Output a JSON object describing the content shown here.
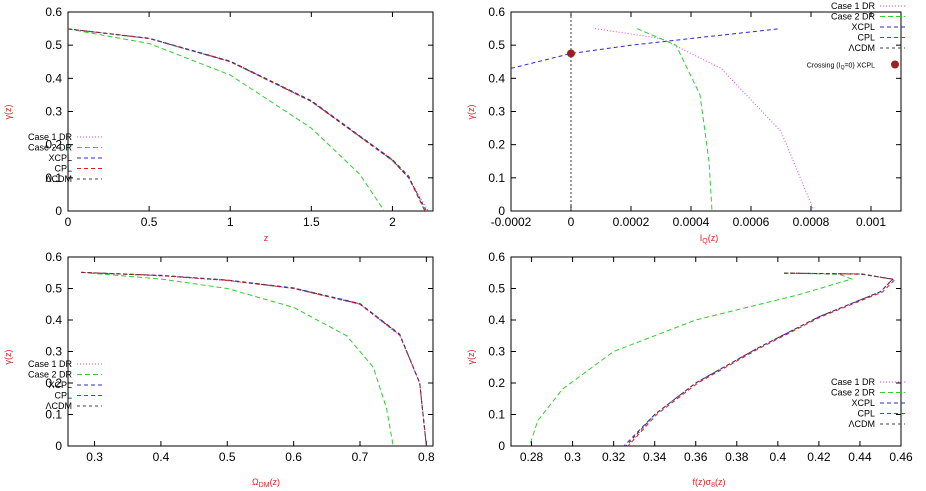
{
  "colors": {
    "case1_dr": "#e040e0",
    "case2_dr": "#33cc33",
    "xcpl": "#2a2ad0",
    "cpl": "#e02020",
    "lcdm": "#404040",
    "crossing_marker": "#9b2020",
    "axis_label": "#e02020"
  },
  "chart_data": [
    {
      "type": "line",
      "xlabel": "z",
      "ylabel": "γ(z)",
      "xlim": [
        0,
        2.25
      ],
      "ylim": [
        0,
        0.6
      ],
      "xticks": [
        "0",
        "0.5",
        "1",
        "1.5",
        "2"
      ],
      "yticks": [
        "0",
        "0.1",
        "0.2",
        "0.3",
        "0.4",
        "0.5",
        "0.6"
      ],
      "legend_position": "lower-left",
      "series": [
        {
          "name": "Case 1 DR",
          "key": "case1_dr",
          "dash": "1,2",
          "x": [
            0,
            0.5,
            1.0,
            1.5,
            2.0,
            2.1,
            2.22
          ],
          "y": [
            0.549,
            0.52,
            0.45,
            0.33,
            0.155,
            0.1,
            0.0
          ]
        },
        {
          "name": "Case 2 DR",
          "key": "case2_dr",
          "dash": "5,3",
          "x": [
            0,
            0.5,
            1.0,
            1.5,
            1.8,
            1.95
          ],
          "y": [
            0.549,
            0.505,
            0.41,
            0.25,
            0.11,
            0.0
          ]
        },
        {
          "name": "XCPL",
          "key": "xcpl",
          "dash": "4,3",
          "x": [
            0,
            0.5,
            1.0,
            1.5,
            2.0,
            2.1,
            2.2
          ],
          "y": [
            0.549,
            0.521,
            0.452,
            0.333,
            0.155,
            0.105,
            0.0
          ]
        },
        {
          "name": "CPL",
          "key": "cpl",
          "dash": "4,3",
          "x": [
            0,
            0.5,
            1.0,
            1.5,
            2.0,
            2.1,
            2.2
          ],
          "y": [
            0.549,
            0.52,
            0.45,
            0.33,
            0.152,
            0.1,
            0.0
          ]
        },
        {
          "name": "ΛCDM",
          "key": "lcdm",
          "dash": "3,3",
          "x": [
            0,
            0.5,
            1.0,
            1.5,
            2.0,
            2.1,
            2.21
          ],
          "y": [
            0.549,
            0.52,
            0.451,
            0.331,
            0.153,
            0.1,
            0.0
          ]
        }
      ]
    },
    {
      "type": "line",
      "xlabel": "I_Q(z)",
      "ylabel": "γ(z)",
      "xlim": [
        -0.0002,
        0.0011
      ],
      "ylim": [
        0,
        0.6
      ],
      "xticks": [
        "-0.0002",
        "0",
        "0.0002",
        "0.0004",
        "0.0006",
        "0.0008",
        "0.001"
      ],
      "yticks": [
        "0",
        "0.1",
        "0.2",
        "0.3",
        "0.4",
        "0.5",
        "0.6"
      ],
      "legend_position": "top-right",
      "crossing_label": "Crossing (I_Q=0) XCPL",
      "crossing_point": {
        "x": 0,
        "y": 0.475
      },
      "vertical_line_x": 0,
      "series": [
        {
          "name": "Case 1 DR",
          "key": "case1_dr",
          "dash": "1,2",
          "x": [
            8e-05,
            0.0003,
            0.0005,
            0.0007,
            0.00081
          ],
          "y": [
            0.55,
            0.52,
            0.43,
            0.24,
            0.0
          ]
        },
        {
          "name": "Case 2 DR",
          "key": "case2_dr",
          "dash": "5,3",
          "x": [
            0.00022,
            0.00035,
            0.00043,
            0.00046,
            0.00047
          ],
          "y": [
            0.55,
            0.5,
            0.35,
            0.15,
            0.0
          ]
        },
        {
          "name": "XCPL",
          "key": "xcpl",
          "dash": "4,3",
          "x": [
            -0.0002,
            0.0,
            0.0002,
            0.0004,
            0.0006,
            0.00069
          ],
          "y": [
            0.43,
            0.475,
            0.5,
            0.52,
            0.54,
            0.549
          ]
        },
        {
          "name": "CPL",
          "key": "cpl",
          "dash": "4,3",
          "x": [],
          "y": []
        },
        {
          "name": "ΛCDM",
          "key": "lcdm",
          "dash": "3,3",
          "x": [],
          "y": []
        }
      ]
    },
    {
      "type": "line",
      "xlabel": "Ω_DM(z)",
      "ylabel": "γ(z)",
      "xlim": [
        0.26,
        0.81
      ],
      "ylim": [
        0,
        0.6
      ],
      "xticks": [
        "0.3",
        "0.4",
        "0.5",
        "0.6",
        "0.7",
        "0.8"
      ],
      "yticks": [
        "0",
        "0.1",
        "0.2",
        "0.3",
        "0.4",
        "0.5",
        "0.6"
      ],
      "legend_position": "lower-left",
      "series": [
        {
          "name": "Case 1 DR",
          "key": "case1_dr",
          "dash": "1,2",
          "x": [
            0.28,
            0.4,
            0.5,
            0.6,
            0.7,
            0.76,
            0.79,
            0.8
          ],
          "y": [
            0.551,
            0.54,
            0.525,
            0.5,
            0.45,
            0.35,
            0.2,
            0.0
          ]
        },
        {
          "name": "Case 2 DR",
          "key": "case2_dr",
          "dash": "5,3",
          "x": [
            0.28,
            0.4,
            0.5,
            0.6,
            0.68,
            0.72,
            0.74,
            0.75
          ],
          "y": [
            0.551,
            0.53,
            0.5,
            0.44,
            0.35,
            0.25,
            0.12,
            0.0
          ]
        },
        {
          "name": "XCPL",
          "key": "xcpl",
          "dash": "4,3",
          "x": [
            0.28,
            0.4,
            0.5,
            0.6,
            0.7,
            0.76,
            0.79,
            0.8
          ],
          "y": [
            0.551,
            0.542,
            0.527,
            0.502,
            0.452,
            0.355,
            0.2,
            0.0
          ]
        },
        {
          "name": "CPL",
          "key": "cpl",
          "dash": "4,3",
          "x": [
            0.28,
            0.4,
            0.5,
            0.6,
            0.7,
            0.76,
            0.79,
            0.8
          ],
          "y": [
            0.551,
            0.541,
            0.526,
            0.5,
            0.45,
            0.352,
            0.2,
            0.0
          ]
        },
        {
          "name": "ΛCDM",
          "key": "lcdm",
          "dash": "3,3",
          "x": [
            0.28,
            0.4,
            0.5,
            0.6,
            0.7,
            0.76,
            0.79,
            0.8
          ],
          "y": [
            0.551,
            0.541,
            0.526,
            0.501,
            0.451,
            0.353,
            0.2,
            0.0
          ]
        }
      ]
    },
    {
      "type": "line",
      "xlabel": "f(z)σ_8(z)",
      "ylabel": "γ(z)",
      "xlim": [
        0.27,
        0.46
      ],
      "ylim": [
        0,
        0.6
      ],
      "xticks": [
        "0.28",
        "0.3",
        "0.32",
        "0.34",
        "0.36",
        "0.38",
        "0.4",
        "0.42",
        "0.44",
        "0.46"
      ],
      "yticks": [
        "0",
        "0.1",
        "0.2",
        "0.3",
        "0.4",
        "0.5",
        "0.6"
      ],
      "legend_position": "lower-right",
      "series": [
        {
          "name": "Case 1 DR",
          "key": "case1_dr",
          "dash": "1,2",
          "x": [
            0.403,
            0.44,
            0.456,
            0.45,
            0.42,
            0.39,
            0.36,
            0.34,
            0.327
          ],
          "y": [
            0.549,
            0.546,
            0.53,
            0.49,
            0.41,
            0.31,
            0.2,
            0.1,
            0.0
          ]
        },
        {
          "name": "Case 2 DR",
          "key": "case2_dr",
          "dash": "5,3",
          "x": [
            0.403,
            0.43,
            0.436,
            0.41,
            0.36,
            0.32,
            0.295,
            0.283,
            0.279
          ],
          "y": [
            0.549,
            0.545,
            0.53,
            0.48,
            0.4,
            0.3,
            0.18,
            0.08,
            0.0
          ]
        },
        {
          "name": "XCPL",
          "key": "xcpl",
          "dash": "4,3",
          "x": [
            0.403,
            0.44,
            0.456,
            0.45,
            0.42,
            0.39,
            0.36,
            0.34,
            0.325
          ],
          "y": [
            0.549,
            0.546,
            0.53,
            0.49,
            0.41,
            0.31,
            0.2,
            0.1,
            0.0
          ]
        },
        {
          "name": "CPL",
          "key": "cpl",
          "dash": "4,3",
          "x": [
            0.403,
            0.442,
            0.457,
            0.451,
            0.421,
            0.391,
            0.361,
            0.341,
            0.327
          ],
          "y": [
            0.549,
            0.545,
            0.528,
            0.489,
            0.41,
            0.31,
            0.2,
            0.1,
            0.0
          ]
        },
        {
          "name": "ΛCDM",
          "key": "lcdm",
          "dash": "3,3",
          "x": [
            0.403,
            0.441,
            0.456,
            0.45,
            0.42,
            0.39,
            0.36,
            0.34,
            0.326
          ],
          "y": [
            0.549,
            0.546,
            0.529,
            0.49,
            0.41,
            0.31,
            0.2,
            0.1,
            0.0
          ]
        }
      ]
    }
  ]
}
